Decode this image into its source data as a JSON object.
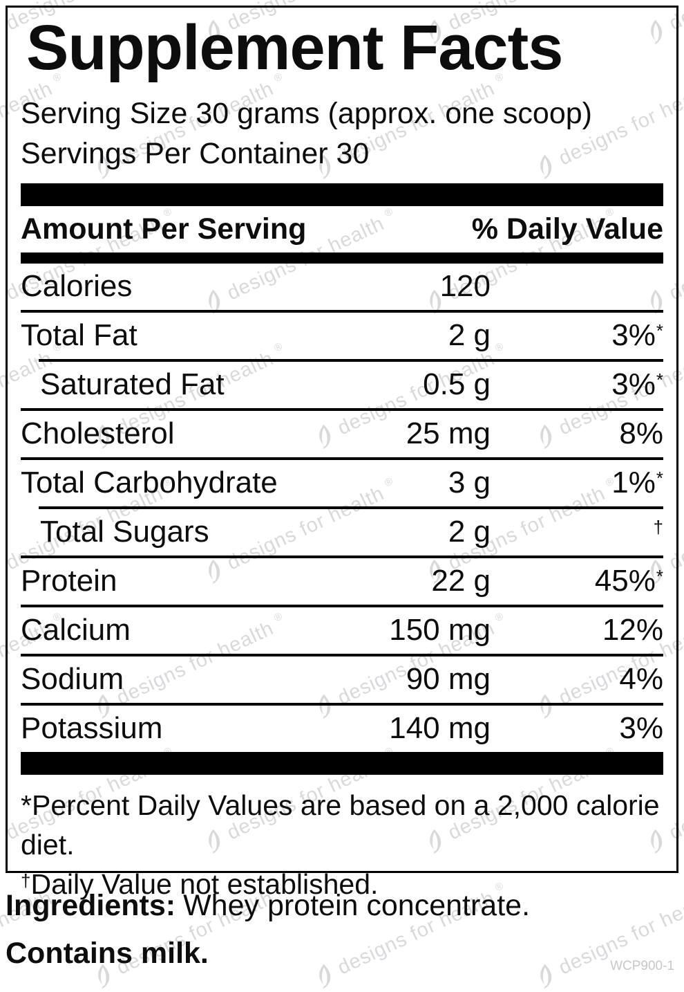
{
  "title": "Supplement Facts",
  "serving": {
    "size_line": "Serving Size 30 grams (approx. one scoop)",
    "per_container": "Servings Per Container 30"
  },
  "table": {
    "header": {
      "left": "Amount Per Serving",
      "right": "% Daily Value"
    },
    "rows": [
      {
        "name": "Calories",
        "amount": "120",
        "dv": "",
        "sup": "",
        "indent": false,
        "divider": "none"
      },
      {
        "name": "Total Fat",
        "amount": "2 g",
        "dv": "3%",
        "sup": "*",
        "indent": false,
        "divider": "full"
      },
      {
        "name": "Saturated Fat",
        "amount": "0.5 g",
        "dv": "3%",
        "sup": "*",
        "indent": true,
        "divider": "indent"
      },
      {
        "name": "Cholesterol",
        "amount": "25 mg",
        "dv": "8%",
        "sup": "",
        "indent": false,
        "divider": "full"
      },
      {
        "name": "Total Carbohydrate",
        "amount": "3 g",
        "dv": "1%",
        "sup": "*",
        "indent": false,
        "divider": "full"
      },
      {
        "name": "Total Sugars",
        "amount": "2 g",
        "dv": "",
        "sup": "†",
        "indent": true,
        "divider": "indent"
      },
      {
        "name": "Protein",
        "amount": "22 g",
        "dv": "45%",
        "sup": "*",
        "indent": false,
        "divider": "full"
      },
      {
        "name": "Calcium",
        "amount": "150 mg",
        "dv": "12%",
        "sup": "",
        "indent": false,
        "divider": "full"
      },
      {
        "name": "Sodium",
        "amount": "90 mg",
        "dv": "4%",
        "sup": "",
        "indent": false,
        "divider": "full"
      },
      {
        "name": "Potassium",
        "amount": "140 mg",
        "dv": "3%",
        "sup": "",
        "indent": false,
        "divider": "full"
      }
    ]
  },
  "footnotes": [
    {
      "prefix": "*",
      "prefix_raised": false,
      "text": "Percent Daily Values are based on a 2,000 calorie diet."
    },
    {
      "prefix": "†",
      "prefix_raised": true,
      "text": "Daily Value not established."
    }
  ],
  "ingredients": {
    "label": "Ingredients:",
    "text": "Whey protein concentrate."
  },
  "contains": "Contains milk.",
  "code": "WCP900-1",
  "watermark": {
    "text": "designs for health",
    "registered": "®"
  },
  "colors": {
    "text": "#0d0d0d",
    "bar": "#000000",
    "watermark": "#d9d9dd",
    "code_gray": "#c7c7cc"
  }
}
